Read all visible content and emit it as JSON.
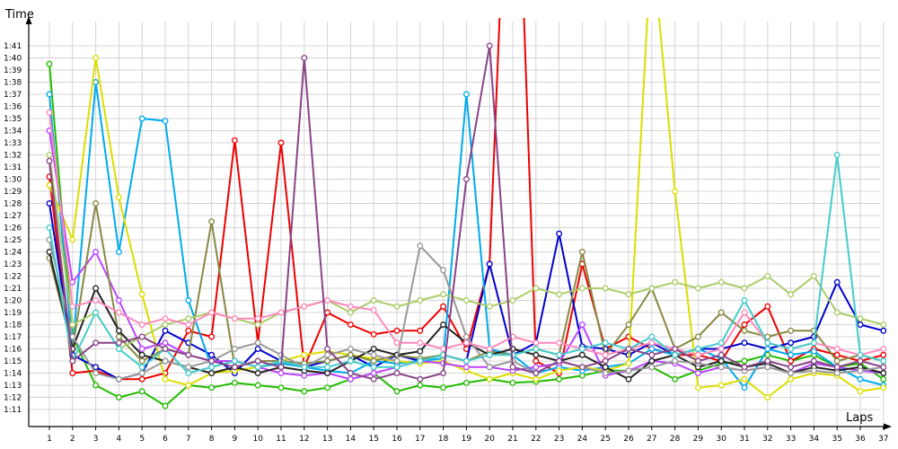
{
  "chart_data": {
    "type": "line",
    "title": "",
    "xlabel": "Laps",
    "ylabel": "Time",
    "x": [
      1,
      2,
      3,
      4,
      5,
      6,
      7,
      8,
      9,
      10,
      11,
      12,
      13,
      14,
      15,
      16,
      17,
      18,
      19,
      20,
      21,
      22,
      23,
      24,
      25,
      26,
      27,
      28,
      29,
      30,
      31,
      32,
      33,
      34,
      35,
      36,
      37
    ],
    "x_tick_labels": [
      "1",
      "2",
      "3",
      "4",
      "5",
      "6",
      "7",
      "8",
      "9",
      "10",
      "11",
      "12",
      "13",
      "14",
      "15",
      "16",
      "17",
      "18",
      "19",
      "20",
      "21",
      "22",
      "23",
      "24",
      "25",
      "26",
      "27",
      "28",
      "29",
      "30",
      "31",
      "32",
      "33",
      "34",
      "35",
      "36",
      "37"
    ],
    "y_tick_labels": [
      "1:11",
      "1:12",
      "1:13",
      "1:14",
      "1:15",
      "1:16",
      "1:17",
      "1:18",
      "1:19",
      "1:20",
      "1:21",
      "1:22",
      "1:23",
      "1:24",
      "1:25",
      "1:26",
      "1:27",
      "1:28",
      "1:29",
      "1:30",
      "1:31",
      "1:32",
      "1:33",
      "1:34",
      "1:35",
      "1:36",
      "1:37",
      "1:38",
      "1:39",
      "1:40",
      "1:41"
    ],
    "ylim": [
      70,
      101
    ],
    "grid": true,
    "legend": "none",
    "series": [
      {
        "color": "#22bb00",
        "values": [
          99.5,
          77,
          73,
          72,
          72.5,
          71.3,
          73,
          72.8,
          73.2,
          73,
          72.8,
          72.5,
          72.8,
          73.5,
          74,
          72.5,
          73,
          72.8,
          73.2,
          73.5,
          73.2,
          73.3,
          73.5,
          73.8,
          74.2,
          74.2,
          74.5,
          73.5,
          74.2,
          74.8,
          75,
          75.5,
          75,
          75.5,
          74.5,
          74.8,
          73.5
        ]
      },
      {
        "color": "#ee0000",
        "values": [
          90.2,
          74,
          74.2,
          73.5,
          73.5,
          74,
          77.5,
          77,
          93.2,
          76.5,
          93,
          74.5,
          79,
          78,
          77.2,
          77.5,
          77.5,
          79.5,
          76,
          83,
          130,
          75,
          74,
          83,
          76,
          77,
          76,
          75.5,
          75.5,
          75,
          78,
          79.5,
          75,
          76,
          75.5,
          75,
          75.5
        ]
      },
      {
        "color": "#0000cc",
        "values": [
          88,
          75.5,
          74.5,
          73.5,
          74,
          77.5,
          76.5,
          75.5,
          74,
          76,
          75,
          74.5,
          75,
          75.5,
          74.5,
          75.5,
          75,
          75.5,
          75,
          83,
          75.5,
          76.5,
          85.5,
          76.2,
          76,
          75.5,
          76.5,
          75.5,
          76,
          76,
          76.5,
          76,
          76.5,
          77,
          81.5,
          78,
          77.5
        ]
      },
      {
        "color": "#00aaee",
        "values": [
          97,
          76,
          98,
          84,
          95,
          94.8,
          80,
          74.5,
          75,
          74.5,
          74.8,
          74.5,
          74.2,
          74,
          75,
          74.8,
          75,
          75.2,
          97,
          76,
          75.5,
          74,
          74.5,
          74.2,
          74.5,
          74.8,
          76,
          75.5,
          76,
          75.2,
          72.8,
          76,
          75.5,
          75.8,
          74.5,
          73.5,
          73
        ]
      },
      {
        "color": "#dddd00",
        "values": [
          89.5,
          85,
          100,
          88.5,
          80.5,
          73.5,
          73,
          74,
          74.2,
          74.5,
          75,
          75.5,
          75.8,
          75.5,
          75.2,
          75,
          74.8,
          75,
          74.2,
          73.5,
          74,
          73.5,
          74.2,
          74.5,
          74.2,
          74.8,
          110,
          89,
          72.8,
          73,
          73.5,
          72,
          73.5,
          74,
          73.8,
          72.5,
          72.8
        ]
      },
      {
        "color": "#bb44ff",
        "values": [
          94,
          81.5,
          84,
          80,
          76,
          76.5,
          75.5,
          75,
          75,
          74.5,
          74,
          73.8,
          74,
          73.5,
          74,
          74.5,
          75,
          74.8,
          74.5,
          74.5,
          74.2,
          74.5,
          74.8,
          78,
          73.8,
          74.2,
          75,
          74.8,
          74,
          74.5,
          74.2,
          74.5,
          74,
          74.8,
          74.5,
          74.2,
          74
        ]
      },
      {
        "color": "#888844",
        "values": [
          83.5,
          76,
          88,
          77,
          75,
          76,
          75.5,
          86.5,
          74.5,
          75,
          75,
          74.8,
          75,
          75.5,
          75,
          75.5,
          75.2,
          75.5,
          75,
          75.8,
          75.5,
          76,
          75.5,
          84,
          75.5,
          78,
          81,
          76,
          77,
          79,
          77.5,
          77,
          77.5,
          77.5,
          75,
          75.5,
          75
        ]
      },
      {
        "color": "#222222",
        "values": [
          84,
          76,
          81,
          77.5,
          75.5,
          75,
          74.5,
          74,
          74.5,
          74,
          74.5,
          74.2,
          74,
          75,
          76,
          75.5,
          75.8,
          78,
          76.5,
          75.5,
          76,
          75.5,
          75,
          75.5,
          74.5,
          73.5,
          75,
          75.5,
          74.5,
          75,
          74.5,
          74.8,
          74,
          74.5,
          74.2,
          74.5,
          74
        ]
      },
      {
        "color": "#999999",
        "values": [
          85,
          77,
          74,
          73.5,
          74,
          75,
          74.5,
          75,
          76,
          76.5,
          75.5,
          74.5,
          75.5,
          76,
          75.5,
          75,
          84.5,
          82.5,
          77,
          74.5,
          75,
          74,
          75,
          74.5,
          74,
          74.2,
          74.5,
          75,
          74.8,
          74.5,
          74.2,
          74.5,
          74,
          74.2,
          74,
          74.2,
          74.5
        ]
      },
      {
        "color": "#aacc66",
        "values": [
          92,
          78,
          79,
          76,
          77,
          78,
          78.5,
          79,
          78.5,
          78,
          79,
          79.5,
          80,
          79,
          80,
          79.5,
          80,
          80.5,
          80,
          79.5,
          80,
          81,
          80.5,
          81,
          81,
          80.5,
          81,
          81.5,
          81,
          81.5,
          81,
          82,
          80.5,
          82,
          79,
          78.5,
          78
        ]
      },
      {
        "color": "#ff88bb",
        "values": [
          95.5,
          79.5,
          80,
          79,
          78,
          78.5,
          78,
          79,
          78.5,
          78.5,
          79,
          79.5,
          80,
          79.5,
          79.2,
          76.5,
          76.5,
          76,
          76.5,
          76,
          77,
          76.5,
          76.5,
          76,
          75.5,
          76,
          76.5,
          76,
          75.5,
          76,
          79,
          76.5,
          76,
          76.5,
          76,
          75.5,
          76
        ]
      },
      {
        "color": "#44cccc",
        "values": [
          86,
          75,
          79,
          76,
          74.5,
          76,
          74,
          74.5,
          75,
          74.5,
          75,
          74.5,
          74.5,
          75,
          74.5,
          74.5,
          75,
          75.5,
          75,
          75.5,
          75.5,
          76,
          75.5,
          76,
          76.5,
          76,
          77,
          75.5,
          76,
          76.5,
          80,
          76.5,
          76,
          76.5,
          92,
          75.5,
          75
        ]
      },
      {
        "color": "#884488",
        "values": [
          91.5,
          75,
          76.5,
          76.5,
          77,
          76,
          75.5,
          75,
          74.5,
          75,
          74.5,
          100,
          76,
          74,
          73.5,
          74,
          73.5,
          74,
          90,
          101,
          74.5,
          74,
          75,
          74.5,
          75,
          76,
          75.5,
          76,
          75,
          75.5,
          74.5,
          75,
          74.5,
          75,
          74.5,
          75,
          74.5
        ]
      }
    ]
  }
}
